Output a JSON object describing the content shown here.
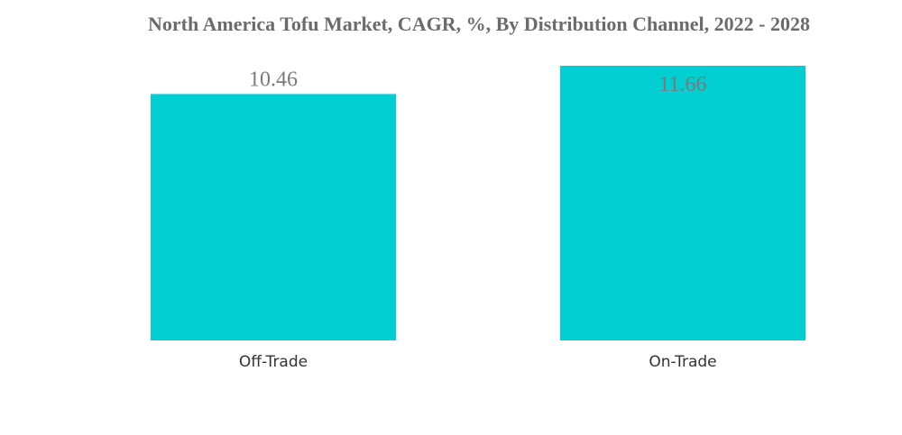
{
  "chart_data": {
    "type": "bar",
    "title": "North America Tofu Market, CAGR, %, By Distribution Channel, 2022 - 2028",
    "xlabel": "",
    "ylabel": "",
    "categories": [
      "Off-Trade",
      "On-Trade"
    ],
    "values": [
      10.46,
      11.66
    ],
    "value_labels": [
      "10.46",
      "11.66"
    ],
    "ylim": [
      0,
      11.66
    ],
    "bar_color": "#00CED1",
    "grid": false,
    "legend": "none"
  }
}
